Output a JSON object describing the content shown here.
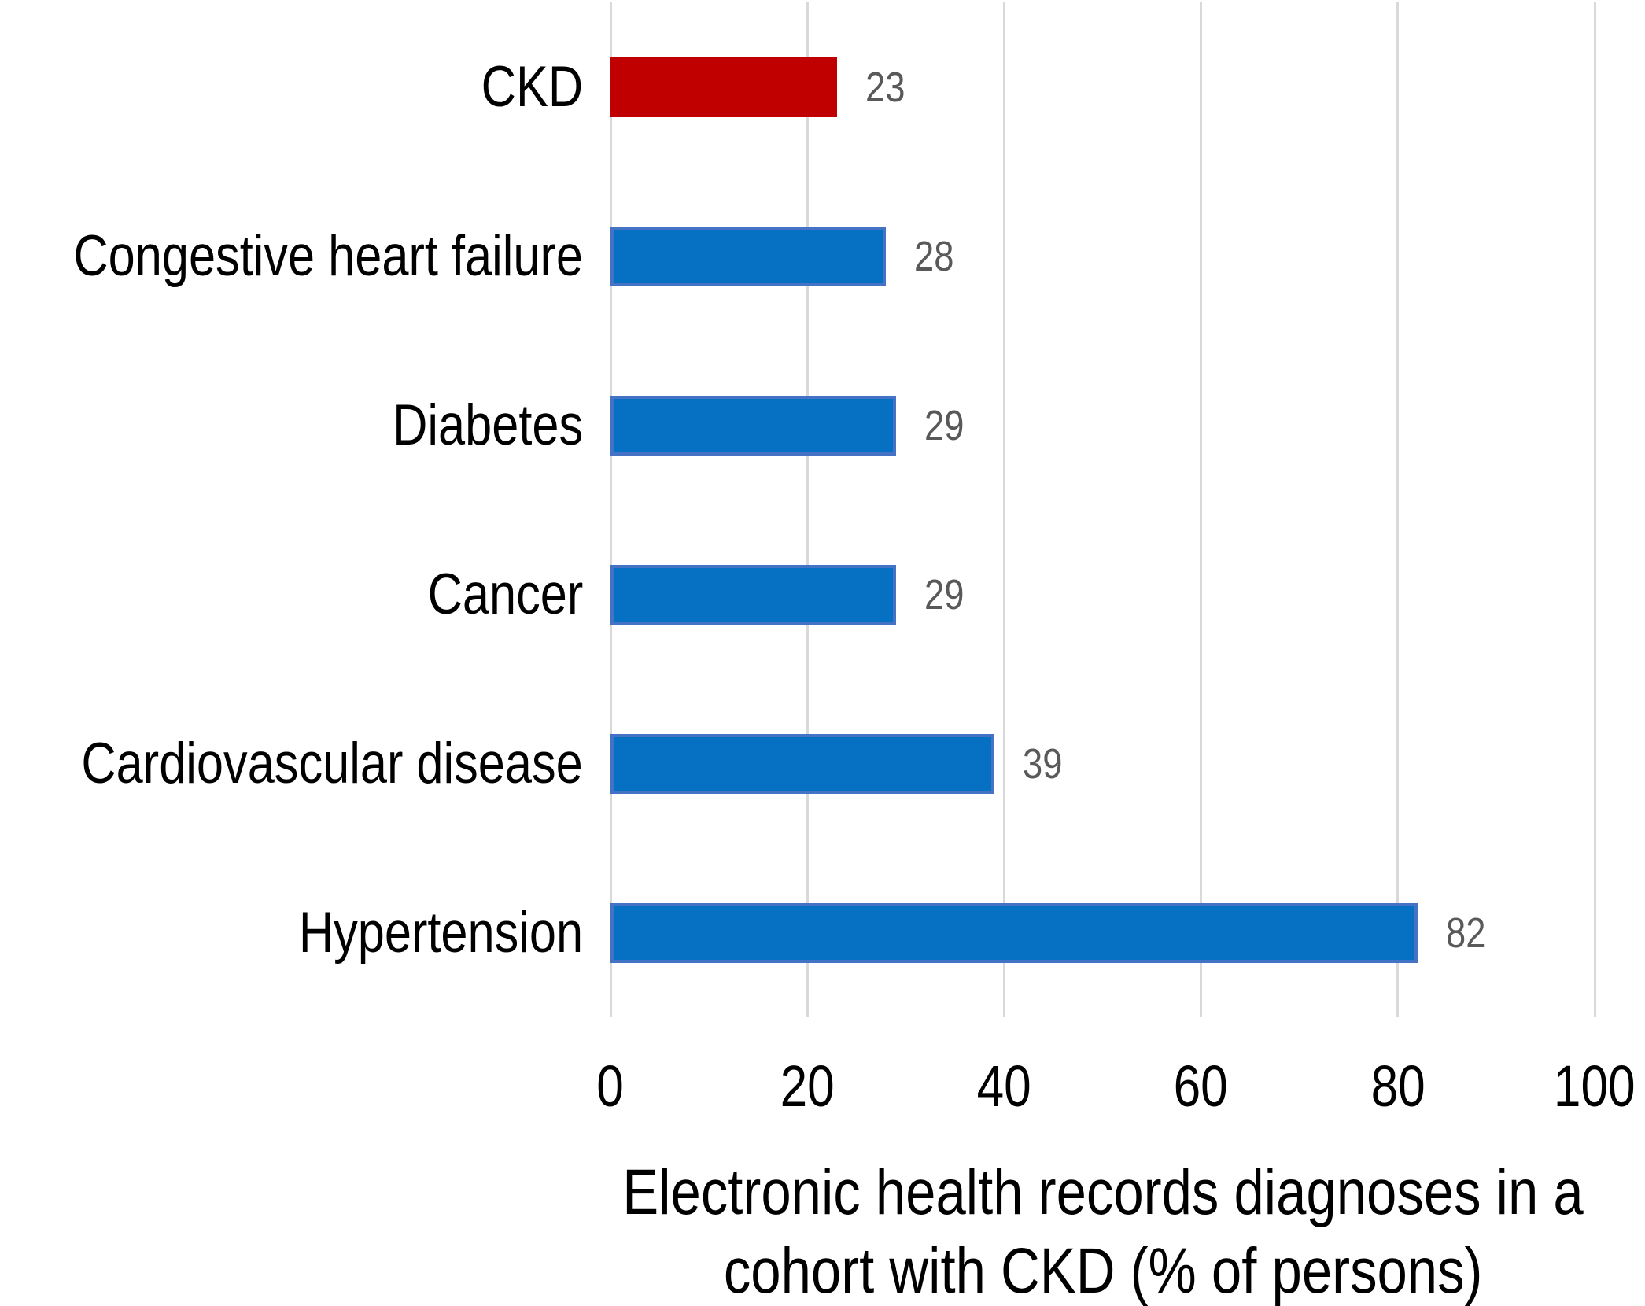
{
  "chart_data": {
    "type": "bar",
    "orientation": "horizontal",
    "title": "Electronic health records diagnoses in a cohort with CKD (% of persons)",
    "title_lines": [
      "Electronic health records diagnoses in a",
      "cohort with CKD (% of persons)"
    ],
    "categories": [
      "CKD",
      "Congestive heart failure",
      "Diabetes",
      "Cancer",
      "Cardiovascular disease",
      "Hypertension"
    ],
    "values": [
      23,
      28,
      29,
      29,
      39,
      82
    ],
    "value_labels": [
      "23",
      "28",
      "29",
      "29",
      "39",
      "82"
    ],
    "xlabel": "",
    "ylabel": "",
    "xlim": [
      0,
      100
    ],
    "x_ticks": [
      0,
      20,
      40,
      60,
      80,
      100
    ],
    "x_tick_labels": [
      "0",
      "20",
      "40",
      "60",
      "80",
      "100"
    ],
    "grid": true,
    "legend": "none",
    "highlight_category": "CKD",
    "highlight_index": 0,
    "colors": {
      "highlight_fill": "#C00000",
      "highlight_border": "#C00000",
      "bar_fill": "#0671C2",
      "bar_border": "#4472C4",
      "value_label": "#595959",
      "gridline": "#D9D9D9",
      "text": "#000000"
    }
  }
}
